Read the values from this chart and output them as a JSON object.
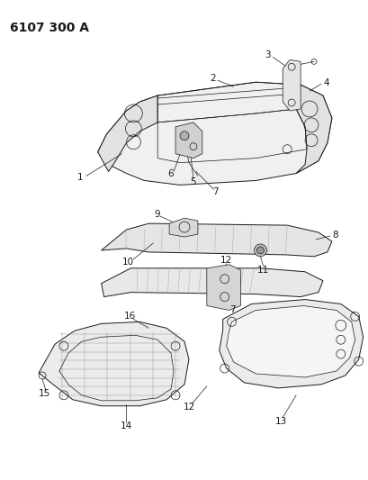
{
  "title": "6107 300 A",
  "bg_color": "#ffffff",
  "line_color": "#1a1a1a",
  "title_fontsize": 10,
  "label_fontsize": 7.5,
  "fig_width": 4.1,
  "fig_height": 5.33,
  "dpi": 100
}
